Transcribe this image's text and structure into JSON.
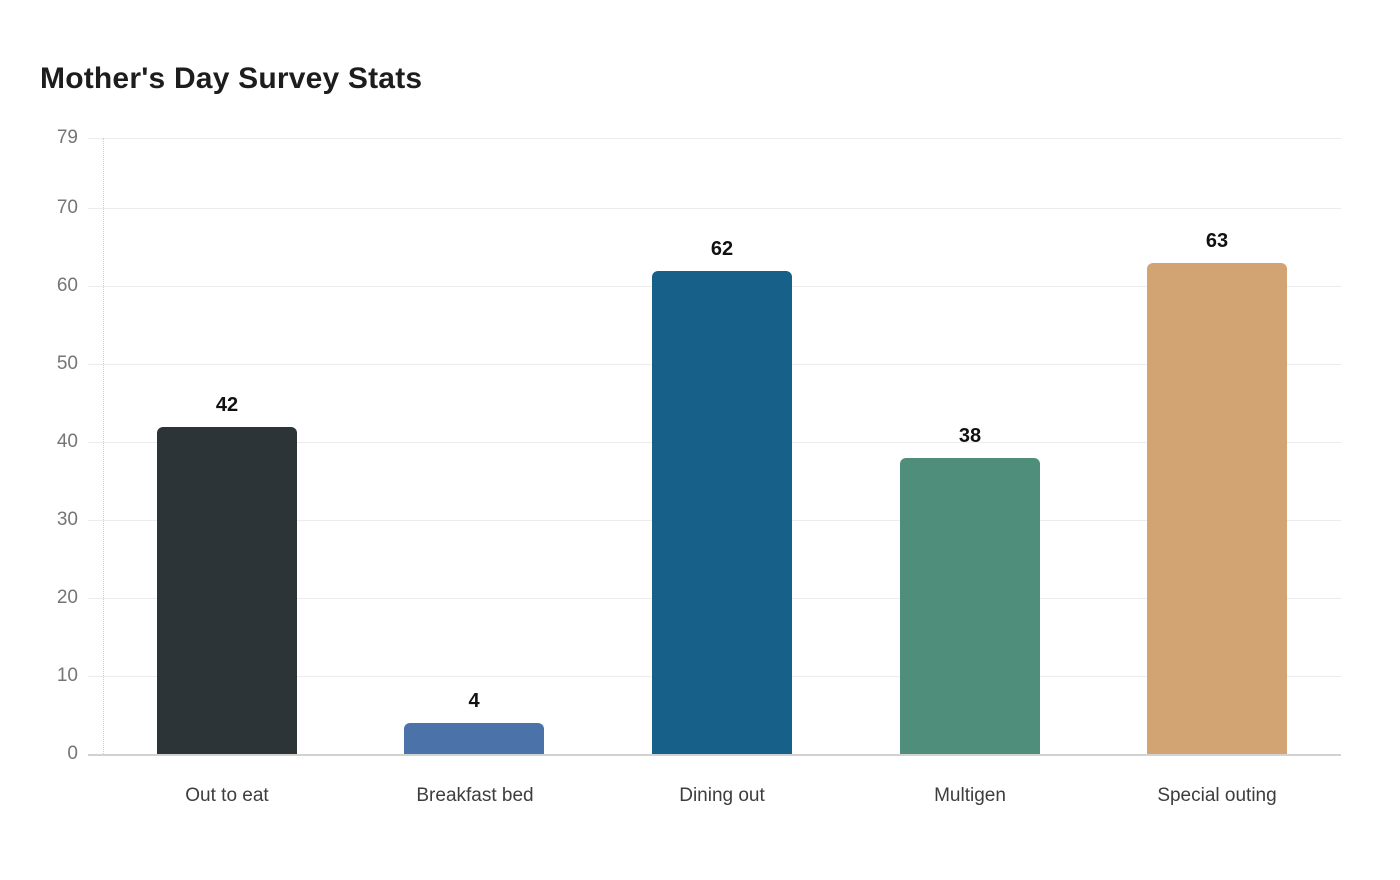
{
  "page": {
    "background": "#ffffff"
  },
  "chart_data": {
    "type": "bar",
    "title": "Mother's Day Survey Stats",
    "categories": [
      "Out to eat",
      "Breakfast bed",
      "Dining out",
      "Multigen",
      "Special outing"
    ],
    "values": [
      42,
      4,
      62,
      38,
      63
    ],
    "value_labels": [
      "42",
      "4",
      "62",
      "38",
      "63"
    ],
    "bar_colors": [
      "#2c3437",
      "#4c73a9",
      "#16608a",
      "#4e8e7b",
      "#d2a373"
    ],
    "y_ticks": [
      0,
      10,
      20,
      30,
      40,
      50,
      60,
      70,
      79
    ],
    "ylim": [
      0,
      79
    ],
    "xlabel": "",
    "ylabel": "",
    "grid": "horizontal",
    "legend": "none",
    "colors": {
      "title_text": "#1d1d1d",
      "grid_line": "#ececec",
      "axis_base_line": "#d2d2d2",
      "axis_dotted_line": "#cfcfcf",
      "y_tick_text": "#757575",
      "x_tick_text": "#3d3d3d",
      "value_label_text": "#111111",
      "background": "#ffffff"
    }
  }
}
